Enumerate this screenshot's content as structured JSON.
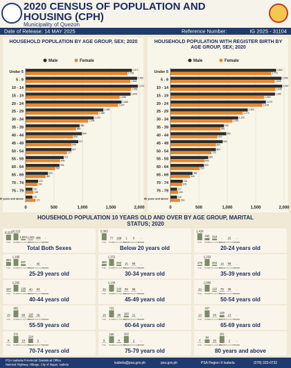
{
  "header": {
    "title": "2020 CENSUS OF POPULATION AND HOUSING (CPH)",
    "subtitle": "Municipality of Quezon",
    "release": "Date of Release: 14 MAY 2025",
    "reference_label": "Reference Number:",
    "reference": "IG 2025 - 31104"
  },
  "chart_data": [
    {
      "type": "hbar",
      "title": "HOUSEHOLD POPULATION BY AGE GROUP, SEX; 2020",
      "categories": [
        "Under 5",
        "5 - 9",
        "10 - 14",
        "15 - 19",
        "20 - 24",
        "25 - 29",
        "30 - 34",
        "35 - 39",
        "40 - 44",
        "45 - 49",
        "50 - 54",
        "55 - 59",
        "60 - 64",
        "65 - 69",
        "70 - 74",
        "75 - 79",
        "80 years and above"
      ],
      "series": [
        {
          "name": "Male",
          "color": "#2b2b2b",
          "values": [
            1871,
            1962,
            1974,
            1848,
            1688,
            1368,
            1200,
            950,
            990,
            927,
            807,
            671,
            596,
            393,
            220,
            120,
            119
          ],
          "value_labels": [
            "1,871",
            "1,962",
            "1,974",
            "1,848",
            "1,688",
            "1,368",
            "1,200",
            "950",
            "990",
            "927",
            "807",
            "671",
            "596",
            "393",
            "220",
            "120",
            "119"
          ]
        },
        {
          "name": "Female",
          "color": "#e8862a",
          "values": [
            1793,
            1843,
            1856,
            1656,
            1627,
            1280,
            1099,
            888,
            836,
            808,
            727,
            608,
            520,
            350,
            209,
            138,
            172
          ],
          "value_labels": [
            "1,793",
            "1,843",
            "1,856",
            "1,656",
            "1,627",
            "1,280",
            "1,099",
            "888",
            "836",
            "808",
            "727",
            "608",
            "520",
            "350",
            "209",
            "138",
            "172"
          ]
        }
      ],
      "xlim": [
        0,
        2000
      ],
      "xticks": [
        0,
        500,
        {
          "value": 1000,
          "label": "1,000"
        },
        {
          "value": 1500,
          "label": "1,500"
        },
        {
          "value": 2000,
          "label": "2,000"
        }
      ],
      "grid": true
    },
    {
      "type": "hbar",
      "title": "HOUSEHOLD POPULATION WITH REGISTER BIRTH BY AGE GROUP, SEX; 2020",
      "categories": [
        "Under 5",
        "5 - 9",
        "10 - 14",
        "15 - 19",
        "20 - 24",
        "25 - 29",
        "30 - 34",
        "35 - 39",
        "40 - 44",
        "45 - 49",
        "50 - 54",
        "55 - 59",
        "60 - 64",
        "65 - 69",
        "70 - 74",
        "75 - 79",
        "80 years and above"
      ],
      "series": [
        {
          "name": "Male",
          "color": "#2b2b2b",
          "values": [
            1860,
            1955,
            1967,
            1840,
            1679,
            1360,
            1192,
            943,
            982,
            920,
            800,
            665,
            590,
            388,
            216,
            117,
            116
          ],
          "value_labels": [
            "1,860",
            "1,955",
            "1,967",
            "1,840",
            "1,679",
            "1,360",
            "1,192",
            "943",
            "982",
            "920",
            "800",
            "665",
            "590",
            "388",
            "216",
            "117",
            "116"
          ]
        },
        {
          "name": "Female",
          "color": "#e8862a",
          "values": [
            1773,
            1835,
            1849,
            1650,
            1618,
            1272,
            1091,
            881,
            829,
            801,
            720,
            602,
            514,
            345,
            205,
            135,
            169
          ],
          "value_labels": [
            "1,773",
            "1,835",
            "1,849",
            "1,650",
            "1,618",
            "1,272",
            "1,091",
            "881",
            "829",
            "801",
            "720",
            "602",
            "514",
            "345",
            "205",
            "135",
            "169"
          ]
        }
      ],
      "xlim": [
        0,
        2000
      ],
      "xticks": [
        0,
        500,
        {
          "value": 1000,
          "label": "1,000"
        },
        {
          "value": 1500,
          "label": "1,500"
        },
        {
          "value": 2000,
          "label": "2,000"
        }
      ],
      "grid": true
    },
    {
      "type": "panels",
      "title": "HOUSEHOLD POPULATION 10 YEARS OLD AND OVER BY AGE GROUP, MARITAL STATUS; 2020",
      "color": "#7d8c68",
      "categories": [
        "Single",
        "Married",
        "Common Law/Live-in",
        "Widowed",
        "Divorced/ Separated/ Annulled",
        "Unknown"
      ],
      "panels": [
        {
          "title": "Total Both Sexes",
          "values": [
            8223,
            10212,
            1822,
            1055,
            409,
            0
          ],
          "value_labels": [
            "8,223",
            "10,212",
            "1,822",
            "1,055",
            "409",
            "-"
          ]
        },
        {
          "title": "Below 20 years old",
          "values": [
            5303,
            77,
            168,
            1,
            5,
            0
          ],
          "value_labels": [
            "5,303",
            "77",
            "168",
            "1",
            "5",
            "-"
          ]
        },
        {
          "title": "20-24 years old",
          "values": [
            1416,
            445,
            318,
            0,
            15,
            0
          ],
          "value_labels": [
            "1,416",
            "445",
            "318",
            "-",
            "15",
            "-"
          ]
        },
        {
          "title": "25-29 years old",
          "values": [
            694,
            1185,
            307,
            0,
            40,
            0
          ],
          "value_labels": [
            "694",
            "1,185",
            "307",
            "-",
            "40",
            "-"
          ]
        },
        {
          "title": "30-34 years old",
          "values": [
            388,
            1372,
            254,
            15,
            56,
            0
          ],
          "value_labels": [
            "388",
            "1,372",
            "254",
            "15",
            "56",
            "-"
          ]
        },
        {
          "title": "35-39 years old",
          "values": [
            179,
            1233,
            204,
            19,
            58,
            0
          ],
          "value_labels": [
            "179",
            "1,233",
            "204",
            "19",
            "58",
            "-"
          ]
        },
        {
          "title": "40-44 years old",
          "values": [
            107,
            1262,
            159,
            40,
            54,
            0
          ],
          "value_labels": [
            "107",
            "1,262",
            "159",
            "40",
            "54",
            "-"
          ]
        },
        {
          "title": "45-49 years old",
          "values": [
            39,
            1134,
            144,
            59,
            55,
            0
          ],
          "value_labels": [
            "39",
            "1,134",
            "144",
            "59",
            "55",
            "-"
          ]
        },
        {
          "title": "50-54 years old",
          "values": [
            29,
            1066,
            110,
            79,
            39,
            0
          ],
          "value_labels": [
            "29",
            "1,066",
            "110",
            "79",
            "39",
            "-"
          ]
        },
        {
          "title": "55-59 years old",
          "values": [
            15,
            882,
            63,
            116,
            29,
            0
          ],
          "value_labels": [
            "15",
            "882",
            "63",
            "116",
            "29",
            "-"
          ]
        },
        {
          "title": "60-64 years old",
          "values": [
            19,
            722,
            46,
            160,
            21,
            0
          ],
          "value_labels": [
            "19",
            "722",
            "46",
            "160",
            "21",
            "-"
          ]
        },
        {
          "title": "65-69 years old",
          "values": [
            13,
            437,
            24,
            149,
            13,
            0
          ],
          "value_labels": [
            "13",
            "437",
            "24",
            "149",
            "13",
            "-"
          ]
        },
        {
          "title": "70-74 years old",
          "values": [
            9,
            211,
            14,
            134,
            5,
            0
          ],
          "value_labels": [
            "9",
            "211",
            "14",
            "134",
            "5",
            "-"
          ]
        },
        {
          "title": "75-79 years old",
          "values": [
            5,
            100,
            8,
            102,
            2,
            0
          ],
          "value_labels": [
            "5",
            "100",
            "8",
            "102",
            "2",
            "-"
          ]
        },
        {
          "title": "80 years and above",
          "values": [
            7,
            84,
            10,
            161,
            2,
            0
          ],
          "value_labels": [
            "7",
            "84",
            "10",
            "161",
            "2",
            "-"
          ]
        }
      ]
    }
  ],
  "footer": {
    "office": "PSA Isabela Provincial Statistical Office",
    "address": "National Highway, Alibagu, City of Ilagan, Isabela",
    "email": "isabela@psa.gov.ph",
    "web": "psa.gov.ph",
    "facebook": "PSA Region II Isabela",
    "phone": "(078) 323-0732"
  }
}
